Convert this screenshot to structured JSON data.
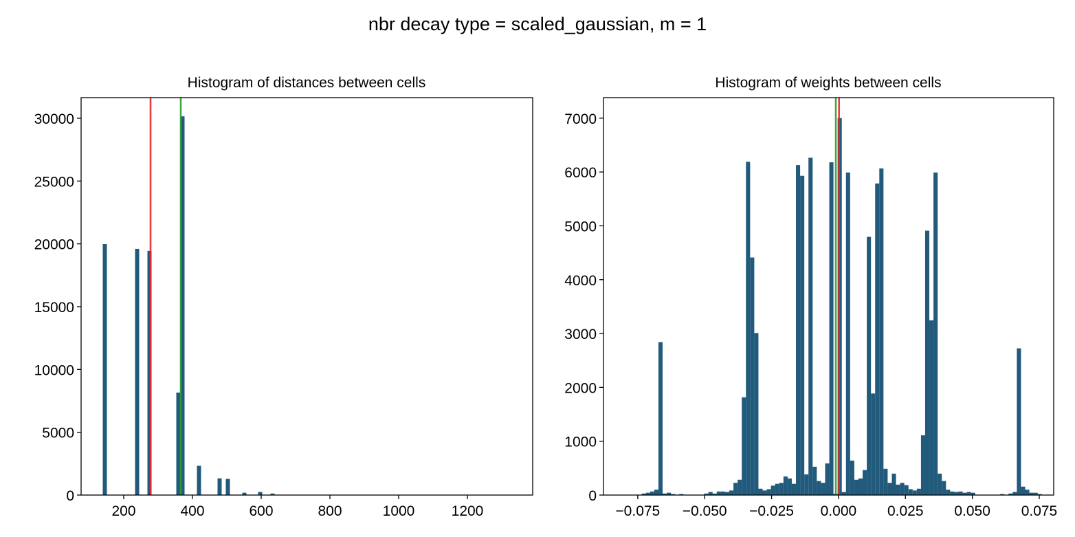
{
  "figure_title": "nbr decay type = scaled_gaussian, m = 1",
  "colors": {
    "bar": "#215a7b",
    "mean_line": "#e8262a",
    "median_line": "#2ca02c",
    "axis": "#000000"
  },
  "chart_data": [
    {
      "type": "bar",
      "title": "Histogram of distances between cells",
      "xlabel": "",
      "ylabel": "",
      "xlim": [
        76,
        1390
      ],
      "ylim": [
        0,
        31640
      ],
      "xticks": [
        200,
        400,
        600,
        800,
        1000,
        1200
      ],
      "xtick_labels": [
        "200",
        "400",
        "600",
        "800",
        "1000",
        "1200"
      ],
      "yticks": [
        0,
        5000,
        10000,
        15000,
        20000,
        25000,
        30000
      ],
      "ytick_labels": [
        "0",
        "5000",
        "10000",
        "15000",
        "20000",
        "25000",
        "30000"
      ],
      "bin_width": 12,
      "bins": [
        {
          "start": 139,
          "count": 19980
        },
        {
          "start": 233,
          "count": 19600
        },
        {
          "start": 269,
          "count": 19440
        },
        {
          "start": 353,
          "count": 8160
        },
        {
          "start": 365,
          "count": 30150
        },
        {
          "start": 413,
          "count": 2330
        },
        {
          "start": 473,
          "count": 1330
        },
        {
          "start": 497,
          "count": 1290
        },
        {
          "start": 545,
          "count": 185
        },
        {
          "start": 591,
          "count": 245
        },
        {
          "start": 627,
          "count": 120
        },
        {
          "start": 699,
          "count": 20
        },
        {
          "start": 735,
          "count": 15
        }
      ],
      "vlines": [
        {
          "name": "red",
          "x": 278
        },
        {
          "name": "green",
          "x": 366
        }
      ],
      "grid": false
    },
    {
      "type": "bar",
      "title": "Histogram of weights between cells",
      "xlabel": "",
      "ylabel": "",
      "xlim": [
        -0.0878,
        0.0804
      ],
      "ylim": [
        0,
        7381
      ],
      "xticks": [
        -0.075,
        -0.05,
        -0.025,
        0.0,
        0.025,
        0.05,
        0.075
      ],
      "xtick_labels": [
        "−0.075",
        "−0.050",
        "−0.025",
        "0.000",
        "0.025",
        "0.050",
        "0.075"
      ],
      "yticks": [
        0,
        1000,
        2000,
        3000,
        4000,
        5000,
        6000,
        7000
      ],
      "ytick_labels": [
        "0",
        "1000",
        "2000",
        "3000",
        "4000",
        "5000",
        "6000",
        "7000"
      ],
      "bin_start": -0.0735,
      "bin_width": 0.001557,
      "counts": [
        28,
        43,
        66,
        100,
        2840,
        28,
        43,
        19,
        5,
        19,
        0,
        0,
        0,
        0,
        0,
        28,
        57,
        28,
        66,
        66,
        57,
        85,
        227,
        284,
        1815,
        6190,
        4412,
        3009,
        118,
        85,
        109,
        175,
        209,
        227,
        346,
        308,
        209,
        6128,
        5929,
        384,
        6265,
        526,
        261,
        227,
        588,
        6180,
        24,
        7000,
        57,
        5990,
        640,
        284,
        308,
        464,
        4796,
        1886,
        5787,
        6066,
        488,
        227,
        398,
        194,
        227,
        185,
        109,
        85,
        118,
        1109,
        4910,
        3246,
        5990,
        398,
        261,
        100,
        66,
        57,
        66,
        43,
        57,
        43,
        0,
        0,
        0,
        0,
        0,
        0,
        19,
        0,
        28,
        57,
        2725,
        156,
        100,
        43,
        43,
        19
      ],
      "vlines": [
        {
          "name": "green",
          "x": -0.001
        },
        {
          "name": "red",
          "x": 0.0002
        }
      ],
      "grid": false
    }
  ]
}
